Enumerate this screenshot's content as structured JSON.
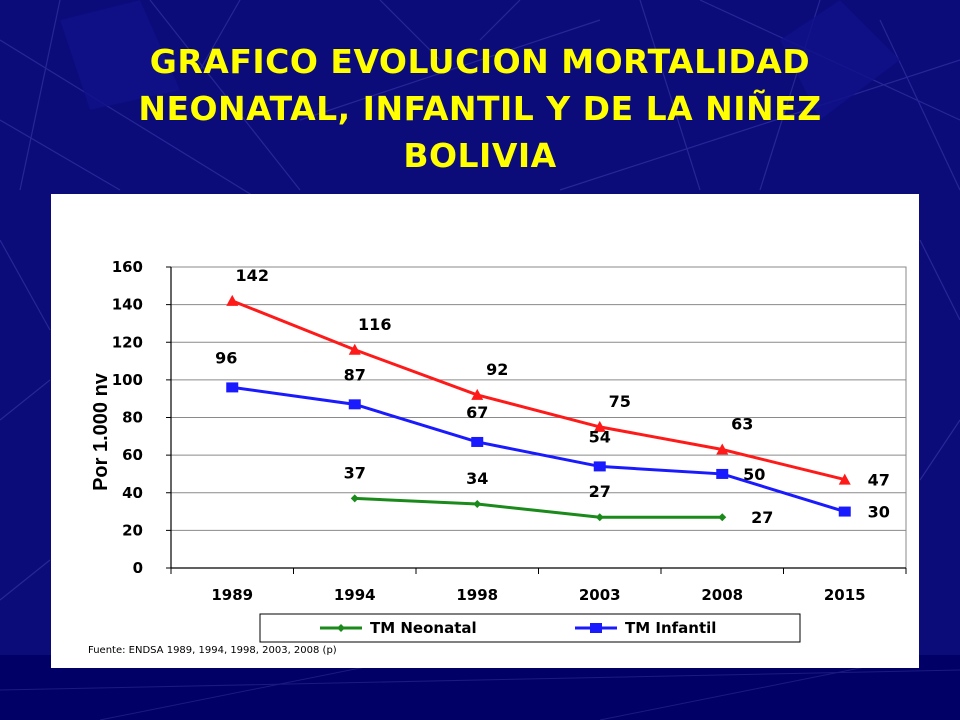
{
  "slide": {
    "title_lines": [
      "GRAFICO EVOLUCION MORTALIDAD",
      "NEONATAL, INFANTIL Y DE LA NIÑEZ",
      "BOLIVIA"
    ],
    "title_color": "#ffff00",
    "background_color": "#0b0b7a"
  },
  "source_note": "Fuente: ENDSA 1989, 1994, 1998, 2003, 2008 (p)",
  "chart_data": {
    "type": "line",
    "title": "",
    "xlabel": "",
    "ylabel": "Por 1.000 nv",
    "categories": [
      "1989",
      "1994",
      "1998",
      "2003",
      "2008",
      "2015"
    ],
    "ylim": [
      0,
      160
    ],
    "yticks": [
      0,
      20,
      40,
      60,
      80,
      100,
      120,
      140,
      160
    ],
    "grid": true,
    "legend_position": "bottom",
    "series": [
      {
        "name": "TM Neonatal",
        "color": "#1a8a1a",
        "marker": "diamond",
        "in_legend": true,
        "values": [
          null,
          37,
          34,
          27,
          27,
          null
        ]
      },
      {
        "name": "TM Infantil",
        "color": "#1a1aff",
        "marker": "square",
        "in_legend": true,
        "values": [
          96,
          87,
          67,
          54,
          50,
          30
        ]
      },
      {
        "color": "#ff1a1a",
        "marker": "triangle",
        "in_legend": false,
        "values": [
          142,
          116,
          92,
          75,
          63,
          47
        ]
      }
    ]
  }
}
